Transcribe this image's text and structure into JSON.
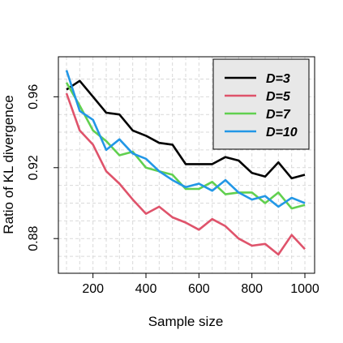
{
  "chart_data": {
    "type": "line",
    "title": "",
    "xlabel": "Sample size",
    "ylabel": "Ratio of KL divergence",
    "xlim": [
      100,
      1000
    ],
    "ylim": [
      0.865,
      0.978
    ],
    "xticks": [
      200,
      400,
      600,
      800,
      1000
    ],
    "yticks": [
      0.88,
      0.92,
      0.96
    ],
    "ytick_labels": [
      "0.88",
      "0.92",
      "0.96"
    ],
    "xtick_labels": [
      "200",
      "400",
      "600",
      "800",
      "1000"
    ],
    "grid": true,
    "legend_position": "top-right",
    "x": [
      100,
      150,
      200,
      250,
      300,
      350,
      400,
      450,
      500,
      550,
      600,
      650,
      700,
      750,
      800,
      850,
      900,
      950,
      1000
    ],
    "series": [
      {
        "name": "D=3",
        "color": "#000000",
        "values": [
          0.964,
          0.969,
          0.96,
          0.951,
          0.95,
          0.941,
          0.938,
          0.934,
          0.933,
          0.922,
          0.922,
          0.922,
          0.926,
          0.924,
          0.917,
          0.915,
          0.923,
          0.914,
          0.916
        ]
      },
      {
        "name": "D=5",
        "color": "#df536b",
        "values": [
          0.962,
          0.941,
          0.933,
          0.918,
          0.911,
          0.902,
          0.894,
          0.898,
          0.892,
          0.889,
          0.885,
          0.891,
          0.887,
          0.88,
          0.876,
          0.877,
          0.871,
          0.882,
          0.874
        ]
      },
      {
        "name": "D=7",
        "color": "#61d04f",
        "values": [
          0.968,
          0.955,
          0.941,
          0.935,
          0.927,
          0.929,
          0.92,
          0.918,
          0.916,
          0.908,
          0.908,
          0.912,
          0.905,
          0.906,
          0.906,
          0.9,
          0.906,
          0.897,
          0.899
        ]
      },
      {
        "name": "D=10",
        "color": "#2297e6",
        "values": [
          0.975,
          0.952,
          0.947,
          0.93,
          0.936,
          0.928,
          0.925,
          0.918,
          0.913,
          0.909,
          0.911,
          0.907,
          0.913,
          0.906,
          0.902,
          0.904,
          0.898,
          0.903,
          0.9
        ]
      }
    ]
  }
}
